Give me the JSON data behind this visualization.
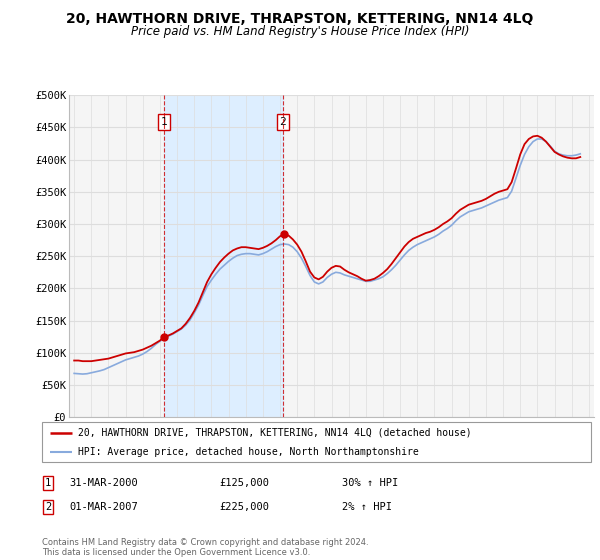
{
  "title": "20, HAWTHORN DRIVE, THRAPSTON, KETTERING, NN14 4LQ",
  "subtitle": "Price paid vs. HM Land Registry's House Price Index (HPI)",
  "title_fontsize": 10,
  "subtitle_fontsize": 8.5,
  "ylabel_ticks": [
    "£0",
    "£50K",
    "£100K",
    "£150K",
    "£200K",
    "£250K",
    "£300K",
    "£350K",
    "£400K",
    "£450K",
    "£500K"
  ],
  "ytick_values": [
    0,
    50000,
    100000,
    150000,
    200000,
    250000,
    300000,
    350000,
    400000,
    450000,
    500000
  ],
  "ylim": [
    0,
    500000
  ],
  "xlim_start": 1994.7,
  "xlim_end": 2025.3,
  "red_line_color": "#cc0000",
  "blue_line_color": "#88aadd",
  "shade_color": "#ddeeff",
  "grid_color": "#dddddd",
  "plot_bg_color": "#f5f5f5",
  "background_color": "#ffffff",
  "purchase1": {
    "label": "1",
    "date": "31-MAR-2000",
    "price": 125000,
    "hpi_change": "30% ↑ HPI",
    "x": 2000.25
  },
  "purchase2": {
    "label": "2",
    "date": "01-MAR-2007",
    "price": 225000,
    "hpi_change": "2% ↑ HPI",
    "x": 2007.17
  },
  "legend_line1": "20, HAWTHORN DRIVE, THRAPSTON, KETTERING, NN14 4LQ (detached house)",
  "legend_line2": "HPI: Average price, detached house, North Northamptonshire",
  "footer": "Contains HM Land Registry data © Crown copyright and database right 2024.\nThis data is licensed under the Open Government Licence v3.0.",
  "hpi_data": {
    "years": [
      1995.0,
      1995.25,
      1995.5,
      1995.75,
      1996.0,
      1996.25,
      1996.5,
      1996.75,
      1997.0,
      1997.25,
      1997.5,
      1997.75,
      1998.0,
      1998.25,
      1998.5,
      1998.75,
      1999.0,
      1999.25,
      1999.5,
      1999.75,
      2000.0,
      2000.25,
      2000.5,
      2000.75,
      2001.0,
      2001.25,
      2001.5,
      2001.75,
      2002.0,
      2002.25,
      2002.5,
      2002.75,
      2003.0,
      2003.25,
      2003.5,
      2003.75,
      2004.0,
      2004.25,
      2004.5,
      2004.75,
      2005.0,
      2005.25,
      2005.5,
      2005.75,
      2006.0,
      2006.25,
      2006.5,
      2006.75,
      2007.0,
      2007.25,
      2007.5,
      2007.75,
      2008.0,
      2008.25,
      2008.5,
      2008.75,
      2009.0,
      2009.25,
      2009.5,
      2009.75,
      2010.0,
      2010.25,
      2010.5,
      2010.75,
      2011.0,
      2011.25,
      2011.5,
      2011.75,
      2012.0,
      2012.25,
      2012.5,
      2012.75,
      2013.0,
      2013.25,
      2013.5,
      2013.75,
      2014.0,
      2014.25,
      2014.5,
      2014.75,
      2015.0,
      2015.25,
      2015.5,
      2015.75,
      2016.0,
      2016.25,
      2016.5,
      2016.75,
      2017.0,
      2017.25,
      2017.5,
      2017.75,
      2018.0,
      2018.25,
      2018.5,
      2018.75,
      2019.0,
      2019.25,
      2019.5,
      2019.75,
      2020.0,
      2020.25,
      2020.5,
      2020.75,
      2021.0,
      2021.25,
      2021.5,
      2021.75,
      2022.0,
      2022.25,
      2022.5,
      2022.75,
      2023.0,
      2023.25,
      2023.5,
      2023.75,
      2024.0,
      2024.25,
      2024.5
    ],
    "hpi_values": [
      68000,
      67500,
      67000,
      67500,
      69000,
      70500,
      72000,
      74000,
      77000,
      80000,
      83000,
      86000,
      89000,
      91000,
      93000,
      95000,
      98000,
      102000,
      107000,
      113000,
      118000,
      122000,
      126000,
      129000,
      133000,
      137000,
      143000,
      151000,
      162000,
      174000,
      189000,
      203000,
      213000,
      222000,
      230000,
      236000,
      242000,
      247000,
      251000,
      253000,
      254000,
      254000,
      253000,
      252000,
      254000,
      257000,
      261000,
      265000,
      268000,
      269000,
      268000,
      264000,
      257000,
      247000,
      234000,
      220000,
      210000,
      207000,
      210000,
      217000,
      222000,
      225000,
      224000,
      221000,
      219000,
      217000,
      215000,
      213000,
      211000,
      211000,
      213000,
      215000,
      218000,
      223000,
      229000,
      236000,
      244000,
      252000,
      259000,
      264000,
      268000,
      271000,
      274000,
      277000,
      280000,
      284000,
      289000,
      293000,
      298000,
      305000,
      311000,
      315000,
      319000,
      321000,
      323000,
      325000,
      328000,
      331000,
      334000,
      337000,
      339000,
      341000,
      351000,
      371000,
      391000,
      408000,
      420000,
      428000,
      432000,
      432000,
      428000,
      421000,
      413000,
      409000,
      407000,
      406000,
      406000,
      407000,
      409000
    ],
    "red_values": [
      88000,
      88000,
      87000,
      87000,
      87000,
      88000,
      89000,
      90000,
      91000,
      93000,
      95000,
      97000,
      99000,
      100000,
      101000,
      103000,
      105000,
      108000,
      111000,
      115000,
      119000,
      125000,
      127000,
      130000,
      134000,
      138000,
      145000,
      154000,
      165000,
      178000,
      194000,
      210000,
      222000,
      232000,
      241000,
      248000,
      254000,
      259000,
      262000,
      264000,
      264000,
      263000,
      262000,
      261000,
      263000,
      266000,
      270000,
      275000,
      281000,
      284000,
      282000,
      276000,
      268000,
      257000,
      242000,
      226000,
      217000,
      214000,
      218000,
      226000,
      232000,
      235000,
      234000,
      229000,
      225000,
      222000,
      219000,
      215000,
      212000,
      213000,
      215000,
      219000,
      224000,
      230000,
      238000,
      247000,
      256000,
      265000,
      272000,
      277000,
      280000,
      283000,
      286000,
      288000,
      291000,
      295000,
      300000,
      304000,
      309000,
      316000,
      322000,
      326000,
      330000,
      332000,
      334000,
      336000,
      339000,
      343000,
      347000,
      350000,
      352000,
      354000,
      365000,
      386000,
      408000,
      424000,
      432000,
      436000,
      437000,
      434000,
      428000,
      420000,
      412000,
      408000,
      405000,
      403000,
      402000,
      402000,
      404000
    ]
  }
}
